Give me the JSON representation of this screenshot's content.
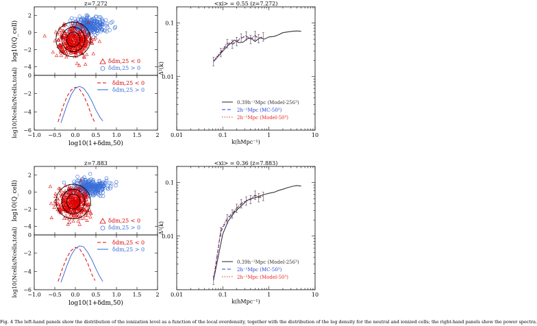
{
  "caption": "Fig. 4  The left-hand panels show the distribution of the ionization level as a function of the local overdensity, together with the distribution of the log density for the neutral and ionized cells; the right-hand panels show the power spectra.",
  "colors": {
    "neutral": "#dd0000",
    "ionized": "#3a6fd8",
    "ps_model256": "#333333",
    "ps_mc50": "#1f3fd0",
    "ps_model50": "#ee2222"
  },
  "chart_data": [
    {
      "type": "scatter",
      "panel": "top-left-upper",
      "title": "z=7.272",
      "xlabel": "",
      "ylabel": "log10(Q_cell)",
      "xlim": [
        -1.0,
        2.0
      ],
      "ylim": [
        -5,
        3
      ],
      "yticks": [
        -4,
        -2,
        0,
        2
      ],
      "series": [
        {
          "name": "δdm,25 < 0",
          "marker": "triangle",
          "color": "#dd0000",
          "center": [
            0.0,
            -1.0
          ]
        },
        {
          "name": "δdm,25 > 0",
          "marker": "circle",
          "color": "#3a6fd8",
          "center": [
            0.3,
            0.8
          ]
        }
      ],
      "legend": "bottom-right"
    },
    {
      "type": "line",
      "panel": "top-left-lower",
      "xlabel": "log10(1+δdm,50)",
      "ylabel": "log10(Ncells/Ncells,total)",
      "xlim": [
        -1.0,
        2.0
      ],
      "ylim": [
        -6,
        0
      ],
      "xticks": [
        -1.0,
        -0.5,
        0.0,
        0.5,
        1.0,
        1.5,
        2.0
      ],
      "yticks": [
        -6,
        -4,
        -2,
        0
      ],
      "series": [
        {
          "name": "δdm,25 < 0",
          "style": "dashed",
          "color": "#dd0000",
          "x": [
            -0.42,
            -0.3,
            -0.2,
            -0.1,
            0.0,
            0.1,
            0.2,
            0.3,
            0.4,
            0.48
          ],
          "y": [
            -5.1,
            -3.4,
            -2.3,
            -1.6,
            -1.3,
            -1.5,
            -2.2,
            -3.2,
            -4.5,
            -5.2
          ]
        },
        {
          "name": "δdm,25 > 0",
          "style": "solid",
          "color": "#3a6fd8",
          "x": [
            -0.35,
            -0.2,
            -0.1,
            0.0,
            0.1,
            0.2,
            0.3,
            0.4,
            0.5,
            0.6,
            0.67
          ],
          "y": [
            -5.2,
            -3.2,
            -2.1,
            -1.4,
            -1.2,
            -1.4,
            -2.0,
            -2.8,
            -3.8,
            -4.6,
            -5.0
          ]
        }
      ],
      "legend": "top-right"
    },
    {
      "type": "line",
      "panel": "top-right",
      "title": "<xi> = 0.55  (z=7.272)",
      "xlabel": "k(hMpc⁻¹)",
      "ylabel": "Δ²(k)",
      "xscale": "log",
      "yscale": "log",
      "xlim": [
        0.01,
        10
      ],
      "ylim": [
        0.001,
        0.2
      ],
      "xticks": [
        0.01,
        0.1,
        1,
        10
      ],
      "yticks": [
        0.01,
        0.1
      ],
      "series": [
        {
          "name": "0.39h⁻¹Mpc (Model-256³)",
          "style": "solid",
          "color": "#333333",
          "x": [
            0.0628,
            0.1,
            0.13,
            0.18,
            0.22,
            0.28,
            0.33,
            0.4,
            0.5,
            0.63,
            0.8,
            1.0,
            1.3,
            1.6,
            2.0,
            2.5,
            3.2,
            4.0,
            5.0
          ],
          "y": [
            0.019,
            0.03,
            0.038,
            0.048,
            0.043,
            0.044,
            0.05,
            0.053,
            0.045,
            0.053,
            0.05,
            0.055,
            0.056,
            0.06,
            0.066,
            0.068,
            0.07,
            0.071,
            0.07
          ]
        },
        {
          "name": "2h⁻¹Mpc (MC-50³)",
          "style": "dashed",
          "color": "#1f3fd0",
          "x": [
            0.0628,
            0.09,
            0.125,
            0.16,
            0.2,
            0.25,
            0.32,
            0.4,
            0.5,
            0.6,
            0.75
          ],
          "y": [
            0.019,
            0.028,
            0.041,
            0.04,
            0.045,
            0.052,
            0.057,
            0.049,
            0.058,
            0.051,
            0.055
          ]
        },
        {
          "name": "2h⁻¹Mpc (Model-50³)",
          "style": "dotted",
          "color": "#ee2222",
          "x": [
            0.0628,
            0.09,
            0.125,
            0.16,
            0.2,
            0.25,
            0.32,
            0.4,
            0.5,
            0.6,
            0.75
          ],
          "y": [
            0.02,
            0.029,
            0.043,
            0.041,
            0.046,
            0.054,
            0.058,
            0.05,
            0.059,
            0.052,
            0.056
          ]
        }
      ],
      "legend": "bottom-right"
    },
    {
      "type": "scatter",
      "panel": "bottom-left-upper",
      "title": "z=7.883",
      "xlabel": "",
      "ylabel": "log10(Q_cell)",
      "xlim": [
        -1.0,
        2.0
      ],
      "ylim": [
        -5,
        3
      ],
      "yticks": [
        -4,
        -2,
        0,
        2
      ],
      "series": [
        {
          "name": "δdm,25 < 0",
          "marker": "triangle",
          "color": "#dd0000",
          "center": [
            0.0,
            -1.3
          ]
        },
        {
          "name": "δdm,25 > 0",
          "marker": "circle",
          "color": "#3a6fd8",
          "center": [
            0.3,
            0.5
          ]
        }
      ],
      "legend": "bottom-right"
    },
    {
      "type": "line",
      "panel": "bottom-left-lower",
      "xlabel": "log10(1+δdm,50)",
      "ylabel": "log10(Ncells/Ncells,total)",
      "xlim": [
        -1.0,
        2.0
      ],
      "ylim": [
        -6,
        0
      ],
      "xticks": [
        -1.0,
        -0.5,
        0.0,
        0.5,
        1.0,
        1.5,
        2.0
      ],
      "yticks": [
        -6,
        -4,
        -2,
        0
      ],
      "series": [
        {
          "name": "δdm,25 < 0",
          "style": "dashed",
          "color": "#dd0000",
          "x": [
            -0.42,
            -0.3,
            -0.2,
            -0.1,
            0.0,
            0.1,
            0.2,
            0.3,
            0.4,
            0.48
          ],
          "y": [
            -5.1,
            -3.5,
            -2.4,
            -1.7,
            -1.35,
            -1.5,
            -2.2,
            -3.1,
            -4.3,
            -5.0
          ]
        },
        {
          "name": "δdm,25 > 0",
          "style": "solid",
          "color": "#3a6fd8",
          "x": [
            -0.35,
            -0.2,
            -0.1,
            0.0,
            0.1,
            0.2,
            0.3,
            0.4,
            0.5,
            0.6,
            0.67
          ],
          "y": [
            -5.2,
            -3.3,
            -2.2,
            -1.5,
            -1.2,
            -1.3,
            -1.9,
            -2.7,
            -3.7,
            -4.6,
            -5.1
          ]
        }
      ],
      "legend": "top-right"
    },
    {
      "type": "line",
      "panel": "bottom-right",
      "title": "<xi> = 0.36  (z=7.883)",
      "xlabel": "k(hMpc⁻¹)",
      "ylabel": "Δ²(k)",
      "xscale": "log",
      "yscale": "log",
      "xlim": [
        0.01,
        10
      ],
      "ylim": [
        0.001,
        0.2
      ],
      "xticks": [
        0.01,
        0.1,
        1,
        10
      ],
      "yticks": [
        0.01,
        0.1
      ],
      "series": [
        {
          "name": "0.39h⁻¹Mpc (Model-256³)",
          "style": "solid",
          "color": "#333333",
          "x": [
            0.0628,
            0.1,
            0.13,
            0.18,
            0.22,
            0.28,
            0.33,
            0.4,
            0.5,
            0.63,
            0.8,
            1.0,
            1.3,
            1.6,
            2.0,
            2.5,
            3.2,
            4.0,
            5.0
          ],
          "y": [
            0.0015,
            0.011,
            0.019,
            0.028,
            0.033,
            0.04,
            0.046,
            0.05,
            0.052,
            0.056,
            0.06,
            0.063,
            0.066,
            0.071,
            0.075,
            0.08,
            0.085,
            0.088,
            0.086
          ]
        },
        {
          "name": "2h⁻¹Mpc (MC-50³)",
          "style": "dashed",
          "color": "#1f3fd0",
          "x": [
            0.0628,
            0.09,
            0.125,
            0.16,
            0.2,
            0.25,
            0.32,
            0.4,
            0.5,
            0.6,
            0.75
          ],
          "y": [
            0.0015,
            0.012,
            0.021,
            0.026,
            0.033,
            0.04,
            0.045,
            0.048,
            0.058,
            0.052,
            0.055
          ]
        },
        {
          "name": "2h⁻¹Mpc (Model-50³)",
          "style": "dotted",
          "color": "#ee2222",
          "x": [
            0.0628,
            0.09,
            0.125,
            0.16,
            0.2,
            0.25,
            0.32,
            0.4,
            0.5,
            0.6,
            0.75
          ],
          "y": [
            0.0016,
            0.013,
            0.022,
            0.027,
            0.034,
            0.041,
            0.046,
            0.049,
            0.059,
            0.053,
            0.056
          ]
        }
      ],
      "legend": "bottom-right"
    }
  ]
}
